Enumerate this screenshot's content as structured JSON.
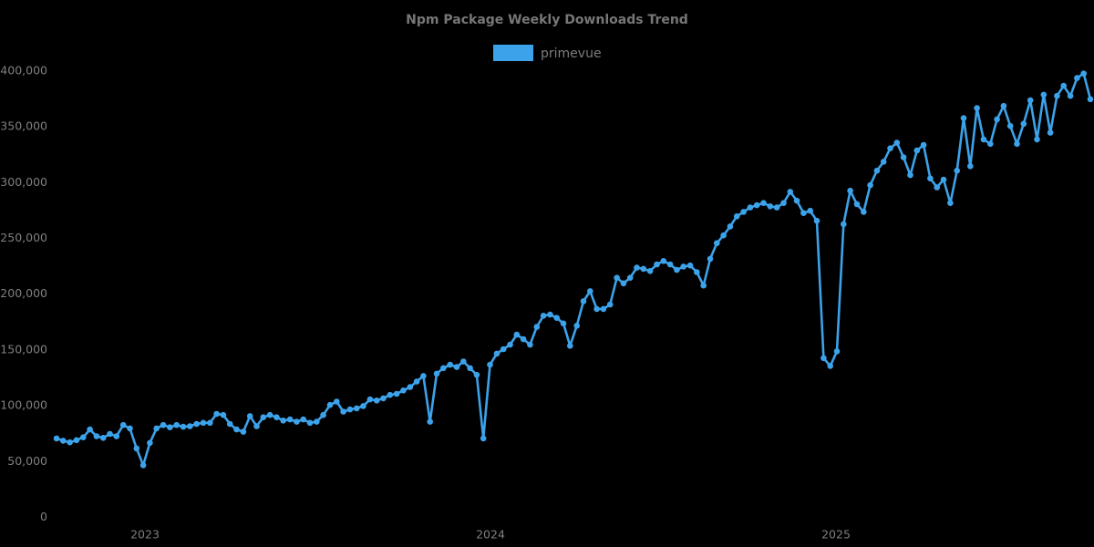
{
  "chart_data": {
    "type": "line",
    "title": "Npm Package Weekly Downloads Trend",
    "legend_position": "top-center",
    "grid": false,
    "background": "#000000",
    "text_color": "#7d7d7d",
    "x_axis": {
      "tick_labels": [
        "2023",
        "2024",
        "2025"
      ],
      "interval": "weekly"
    },
    "y_axis": {
      "min": 0,
      "max": 400000,
      "tick_labels": [
        "400,000",
        "350,000",
        "300,000",
        "250,000",
        "200,000",
        "150,000",
        "100,000",
        "50,000",
        "0"
      ],
      "tick_values": [
        400000,
        350000,
        300000,
        250000,
        200000,
        150000,
        100000,
        50000,
        0
      ]
    },
    "series": [
      {
        "name": "primevue",
        "color": "#3ca2ea",
        "marker": "circle",
        "values": [
          70000,
          68000,
          66500,
          68500,
          71000,
          78000,
          72000,
          70500,
          74000,
          72000,
          82000,
          79000,
          61000,
          46000,
          66000,
          79000,
          82000,
          80000,
          82000,
          80500,
          81000,
          83000,
          84000,
          84000,
          92000,
          91000,
          83000,
          78000,
          76000,
          90000,
          81000,
          89000,
          91000,
          89000,
          86000,
          87000,
          85000,
          87000,
          84000,
          85000,
          91000,
          100000,
          103000,
          94000,
          96000,
          97000,
          99000,
          105000,
          104000,
          106000,
          109000,
          110000,
          113000,
          116000,
          121000,
          126000,
          85000,
          128000,
          133000,
          136000,
          134000,
          139000,
          133000,
          127000,
          70000,
          136000,
          146000,
          150000,
          154000,
          163000,
          159000,
          154000,
          170000,
          180000,
          181000,
          178000,
          173000,
          153000,
          171000,
          193000,
          202000,
          186000,
          186000,
          190000,
          214000,
          209000,
          214000,
          223000,
          222000,
          220000,
          226000,
          229000,
          226000,
          221000,
          224000,
          225000,
          219000,
          207000,
          231000,
          245000,
          252000,
          260000,
          269000,
          273000,
          277000,
          279000,
          281000,
          278000,
          277000,
          281000,
          291000,
          283000,
          272000,
          274000,
          265000,
          142000,
          135000,
          148000,
          262000,
          292000,
          280000,
          273000,
          297000,
          310000,
          318000,
          330000,
          335000,
          322000,
          306000,
          328000,
          333000,
          303000,
          295000,
          302000,
          281000,
          310000,
          357000,
          314000,
          366000,
          338000,
          334000,
          356000,
          368000,
          350000,
          334000,
          352000,
          373000,
          338000,
          378000,
          344000,
          377000,
          386000,
          377000,
          393000,
          397000,
          374000
        ]
      }
    ]
  }
}
